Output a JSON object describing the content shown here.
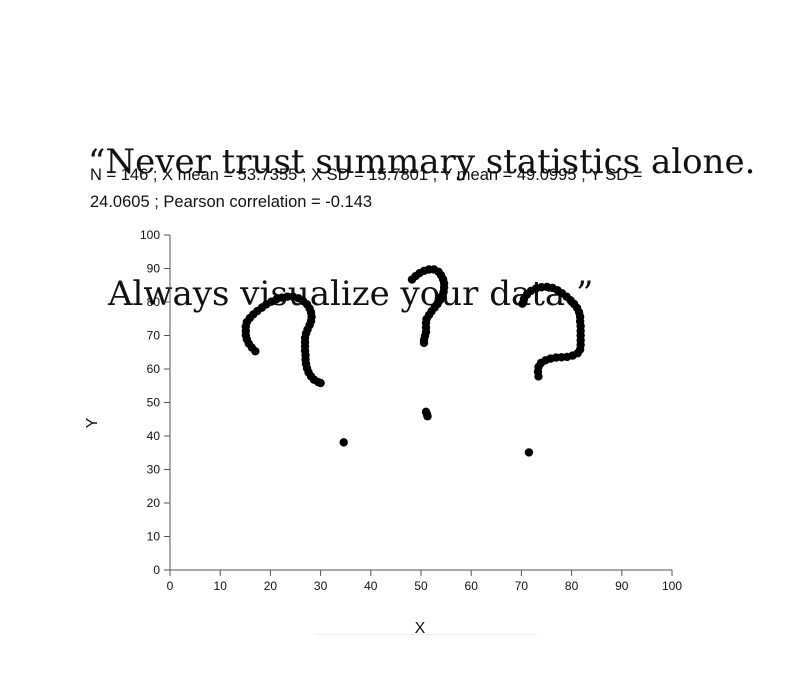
{
  "header": {
    "quote_line1": "“Never trust summary statistics alone.",
    "quote_line2": "Always visualize your data.”",
    "stats": "N = 146 ; X mean = 53.7355 ; X SD = 15.7801 ; Y mean = 49.0995 ; Y SD = 24.0605 ; Pearson correlation = -0.143"
  },
  "chart_data": {
    "type": "scatter",
    "title": "",
    "xlabel": "X",
    "ylabel": "Y",
    "xlim": [
      0,
      100
    ],
    "ylim": [
      0,
      100
    ],
    "xticks": [
      0,
      10,
      20,
      30,
      40,
      50,
      60,
      70,
      80,
      90,
      100
    ],
    "yticks": [
      0,
      10,
      20,
      30,
      40,
      50,
      60,
      70,
      80,
      90,
      100
    ],
    "grid": false,
    "point_color": "#000000",
    "series": [
      {
        "values": [
          [
            17.0,
            65.3
          ],
          [
            16.3,
            66.4
          ],
          [
            15.7,
            67.6
          ],
          [
            15.3,
            68.9
          ],
          [
            15.1,
            70.1
          ],
          [
            15.1,
            71.4
          ],
          [
            15.1,
            72.7
          ],
          [
            15.3,
            74.0
          ],
          [
            15.9,
            75.2
          ],
          [
            16.6,
            76.3
          ],
          [
            17.4,
            77.3
          ],
          [
            18.3,
            78.3
          ],
          [
            19.2,
            79.3
          ],
          [
            20.2,
            80.1
          ],
          [
            21.2,
            80.8
          ],
          [
            22.3,
            81.3
          ],
          [
            23.4,
            81.6
          ],
          [
            24.5,
            81.6
          ],
          [
            25.6,
            81.1
          ],
          [
            26.5,
            80.3
          ],
          [
            27.3,
            79.3
          ],
          [
            27.8,
            78.1
          ],
          [
            28.1,
            76.9
          ],
          [
            28.2,
            75.6
          ],
          [
            28.1,
            74.3
          ],
          [
            27.8,
            73.1
          ],
          [
            27.4,
            71.8
          ],
          [
            27.1,
            70.6
          ],
          [
            26.9,
            69.3
          ],
          [
            26.9,
            68.0
          ],
          [
            26.9,
            66.7
          ],
          [
            26.9,
            65.4
          ],
          [
            27.0,
            64.1
          ],
          [
            27.0,
            62.8
          ],
          [
            27.1,
            61.5
          ],
          [
            27.3,
            60.2
          ],
          [
            27.6,
            59.0
          ],
          [
            28.1,
            57.8
          ],
          [
            28.7,
            56.8
          ],
          [
            29.5,
            56.1
          ],
          [
            30.0,
            55.8
          ],
          [
            48.2,
            86.7
          ],
          [
            48.9,
            87.7
          ],
          [
            49.7,
            88.6
          ],
          [
            50.6,
            89.3
          ],
          [
            51.6,
            89.7
          ],
          [
            52.6,
            89.7
          ],
          [
            53.5,
            89.0
          ],
          [
            54.0,
            88.0
          ],
          [
            54.4,
            86.8
          ],
          [
            54.6,
            85.6
          ],
          [
            54.6,
            84.3
          ],
          [
            54.5,
            83.0
          ],
          [
            54.2,
            81.8
          ],
          [
            53.8,
            80.6
          ],
          [
            53.3,
            79.4
          ],
          [
            52.7,
            78.3
          ],
          [
            52.1,
            77.2
          ],
          [
            51.6,
            76.1
          ],
          [
            51.1,
            74.9
          ],
          [
            51.0,
            73.7
          ],
          [
            51.0,
            72.4
          ],
          [
            51.0,
            71.1
          ],
          [
            50.8,
            69.9
          ],
          [
            50.6,
            68.7
          ],
          [
            50.6,
            67.8
          ],
          [
            51.0,
            47.2
          ],
          [
            51.2,
            46.5
          ],
          [
            51.3,
            45.9
          ],
          [
            34.6,
            38.1
          ],
          [
            70.2,
            79.5
          ],
          [
            70.5,
            80.9
          ],
          [
            71.1,
            82.2
          ],
          [
            71.9,
            83.3
          ],
          [
            72.9,
            84.0
          ],
          [
            74.0,
            84.4
          ],
          [
            75.1,
            84.5
          ],
          [
            76.2,
            84.2
          ],
          [
            77.2,
            83.5
          ],
          [
            78.1,
            82.6
          ],
          [
            79.0,
            81.6
          ],
          [
            79.8,
            80.5
          ],
          [
            80.5,
            79.4
          ],
          [
            81.1,
            78.2
          ],
          [
            81.5,
            76.9
          ],
          [
            81.7,
            75.6
          ],
          [
            81.7,
            74.2
          ],
          [
            81.8,
            72.8
          ],
          [
            81.8,
            71.4
          ],
          [
            81.8,
            70.0
          ],
          [
            81.8,
            68.6
          ],
          [
            81.8,
            67.2
          ],
          [
            81.7,
            65.8
          ],
          [
            81.2,
            64.7
          ],
          [
            80.2,
            64.0
          ],
          [
            79.1,
            63.6
          ],
          [
            78.0,
            63.5
          ],
          [
            76.9,
            63.4
          ],
          [
            75.8,
            63.1
          ],
          [
            74.8,
            62.6
          ],
          [
            73.9,
            61.8
          ],
          [
            73.4,
            60.6
          ],
          [
            73.3,
            59.2
          ],
          [
            73.4,
            57.8
          ],
          [
            71.5,
            35.1
          ]
        ]
      }
    ]
  }
}
